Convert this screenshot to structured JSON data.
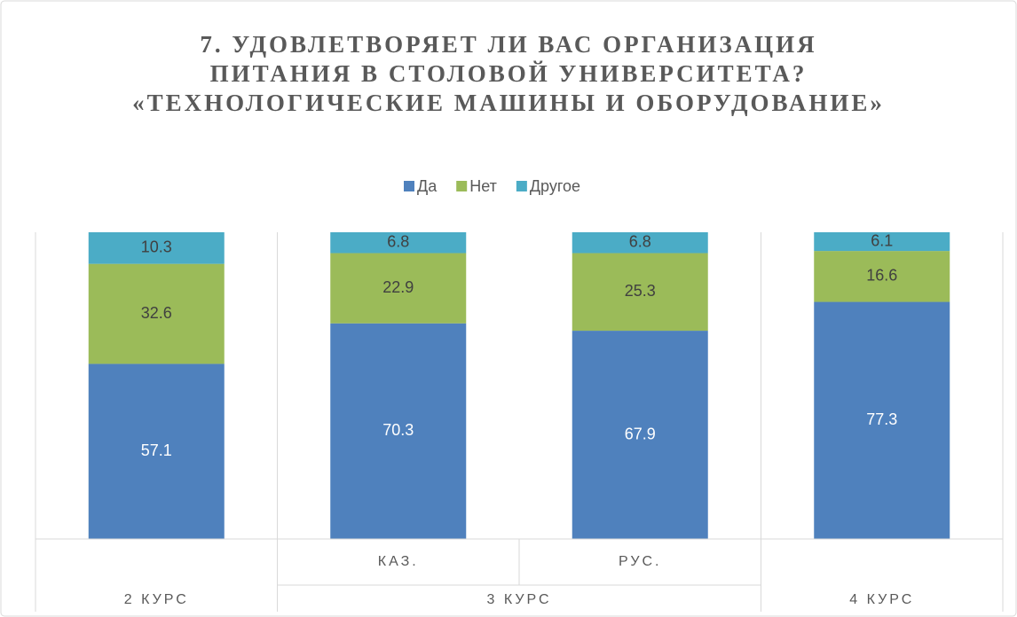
{
  "chart_data": {
    "type": "stacked_bar",
    "title": "7. УДОВЛЕТВОРЯЕТ ЛИ ВАС ОРГАНИЗАЦИЯ ПИТАНИЯ В СТОЛОВОЙ УНИВЕРСИТЕТА? «ТЕХНОЛОГИЧЕСКИЕ МАШИНЫ И ОБОРУДОВАНИЕ»",
    "categories": [
      null,
      "КАЗ.",
      "РУС.",
      null
    ],
    "category_groups": [
      {
        "name": "2 КУРС",
        "categories": [
          0
        ]
      },
      {
        "name": "3 КУРС",
        "categories": [
          1,
          2
        ]
      },
      {
        "name": "4 КУРС",
        "categories": [
          3
        ]
      }
    ],
    "series": [
      {
        "name": "Да",
        "color": "#4f81bd",
        "label_color": "#ffffff",
        "values": [
          57.1,
          70.3,
          67.9,
          77.3
        ]
      },
      {
        "name": "Нет",
        "color": "#9bbb59",
        "label_color": "#404040",
        "values": [
          32.6,
          22.9,
          25.3,
          16.6
        ]
      },
      {
        "name": "Другое",
        "color": "#4bacc6",
        "label_color": "#404040",
        "values": [
          10.3,
          6.8,
          6.8,
          6.1
        ]
      }
    ],
    "ylim": [
      0,
      100
    ],
    "grid": false,
    "legend": "top"
  }
}
